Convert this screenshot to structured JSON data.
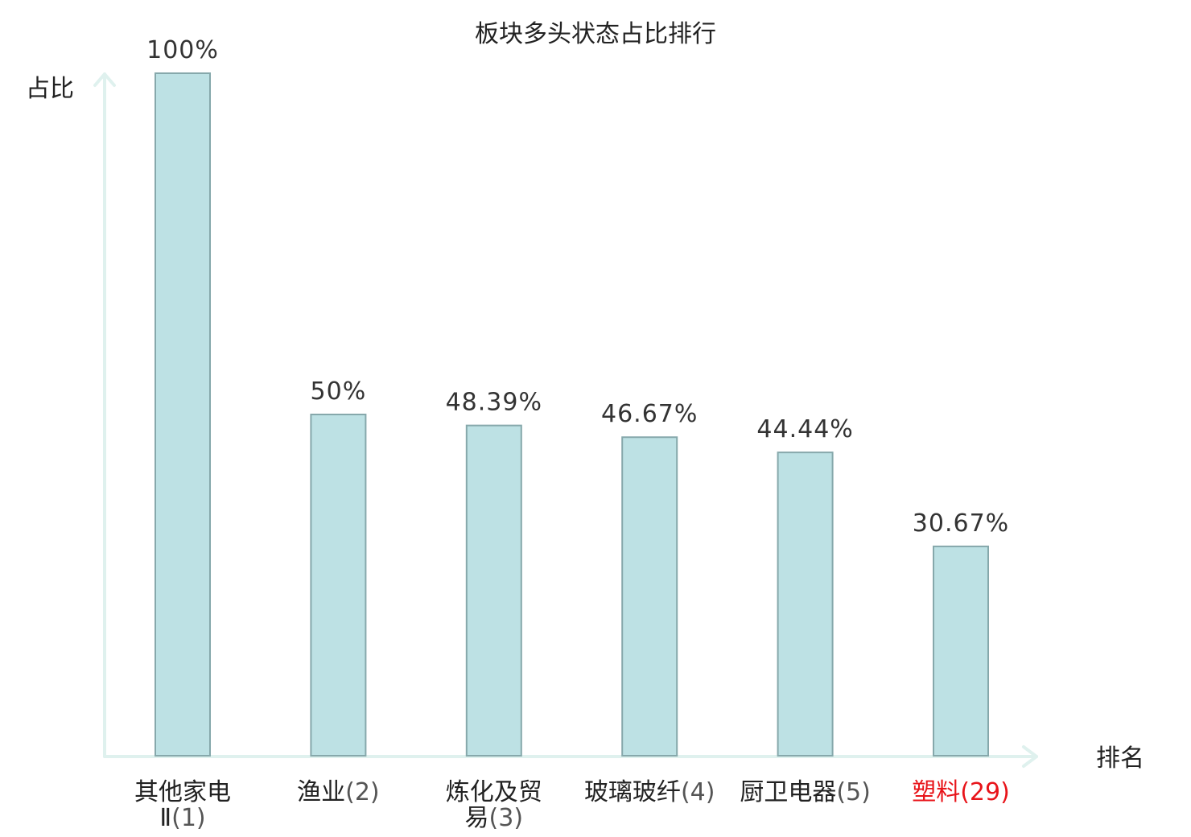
{
  "chart_data": {
    "type": "bar",
    "title": "板块多头状态占比排行",
    "xlabel": "排名",
    "ylabel": "占比",
    "ylim": [
      0,
      100
    ],
    "grid": false,
    "categories": [
      {
        "lines": [
          "其他家电",
          "Ⅱ(1)"
        ],
        "highlight": false
      },
      {
        "lines": [
          "渔业(2)"
        ],
        "highlight": false
      },
      {
        "lines": [
          "炼化及贸",
          "易(3)"
        ],
        "highlight": false
      },
      {
        "lines": [
          "玻璃玻纤(4)"
        ],
        "highlight": false
      },
      {
        "lines": [
          "厨卫电器(5)"
        ],
        "highlight": false
      },
      {
        "lines": [
          "塑料(29)"
        ],
        "highlight": true
      }
    ],
    "values": [
      100,
      50,
      48.39,
      46.67,
      44.44,
      30.67
    ],
    "value_labels": [
      "100%",
      "50%",
      "48.39%",
      "46.67%",
      "44.44%",
      "30.67%"
    ],
    "colors": {
      "bar_fill": "#bde1e4",
      "bar_stroke": "#86a8ab",
      "axis": "#dff1ee",
      "highlight_text": "#e8141a"
    }
  }
}
